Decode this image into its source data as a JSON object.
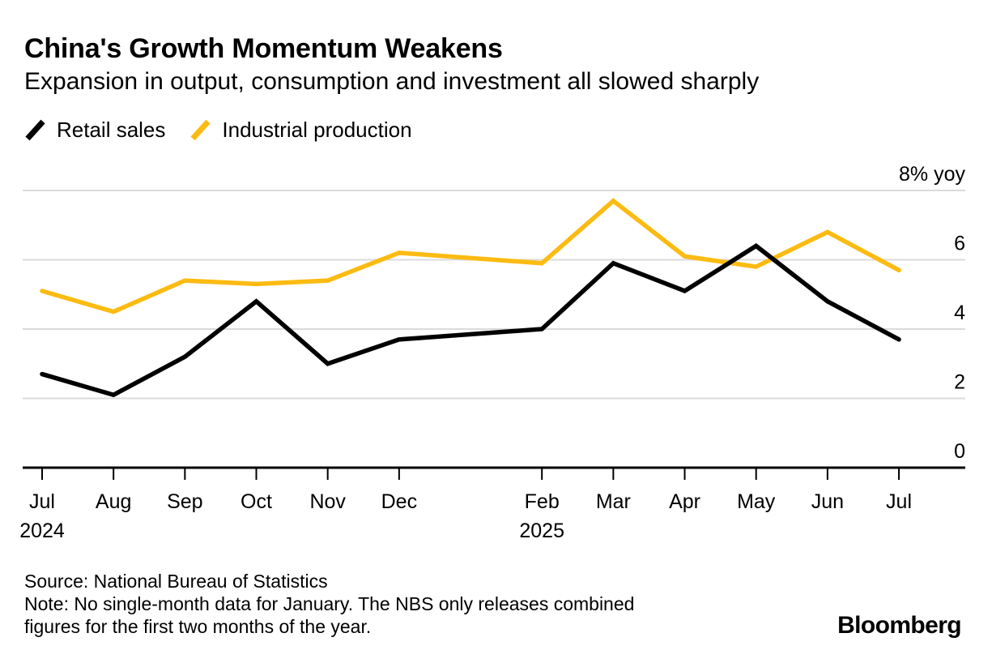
{
  "header": {
    "title": "China's Growth Momentum Weakens",
    "subtitle": "Expansion in output, consumption and investment all slowed sharply"
  },
  "legend": {
    "items": [
      {
        "label": "Retail sales",
        "color": "#000000"
      },
      {
        "label": "Industrial production",
        "color": "#FCBB12"
      }
    ]
  },
  "chart_data": {
    "type": "line",
    "unit": "% yoy",
    "x_categories": [
      "Jul 2024",
      "Aug 2024",
      "Sep 2024",
      "Oct 2024",
      "Nov 2024",
      "Dec 2024",
      "Feb 2025",
      "Mar 2025",
      "Apr 2025",
      "May 2025",
      "Jun 2025",
      "Jul 2025"
    ],
    "x_tick_labels": [
      "Jul",
      "Aug",
      "Sep",
      "Oct",
      "Nov",
      "Dec",
      "Feb",
      "Mar",
      "Apr",
      "May",
      "Jun",
      "Jul"
    ],
    "x_slots": [
      0,
      1,
      2,
      3,
      4,
      5,
      7,
      8,
      9,
      10,
      11,
      12
    ],
    "x_year_labels": [
      {
        "slot": 0,
        "text": "2024"
      },
      {
        "slot": 7,
        "text": "2025"
      }
    ],
    "series": [
      {
        "name": "Retail sales",
        "color": "#000000",
        "z": 2,
        "values": [
          2.7,
          2.1,
          3.2,
          4.8,
          3.0,
          3.7,
          4.0,
          5.9,
          5.1,
          6.4,
          4.8,
          3.7
        ]
      },
      {
        "name": "Industrial production",
        "color": "#FCBB12",
        "z": 1,
        "values": [
          5.1,
          4.5,
          5.4,
          5.3,
          5.4,
          6.2,
          5.9,
          7.7,
          6.1,
          5.8,
          6.8,
          5.7
        ]
      }
    ],
    "y_axis": {
      "min": 0,
      "max": 8,
      "gridline_values": [
        2,
        4,
        6,
        8
      ],
      "tick_labels": [
        {
          "value": 0,
          "text": "0"
        },
        {
          "value": 2,
          "text": "2"
        },
        {
          "value": 4,
          "text": "4"
        },
        {
          "value": 6,
          "text": "6"
        },
        {
          "value": 8,
          "text": "8% yoy"
        }
      ],
      "grid": true,
      "label_position": "right"
    },
    "legend_position": "top-left",
    "gap_note_slot": 6
  },
  "footer": {
    "source": "Source: National Bureau of Statistics",
    "note": [
      "Note: No single-month data for January. The NBS only releases combined",
      "figures for the first two months of the year."
    ],
    "brand": "Bloomberg"
  },
  "colors": {
    "grid": "#DBDBDB",
    "axis": "#000000",
    "background": "#FFFFFF"
  }
}
